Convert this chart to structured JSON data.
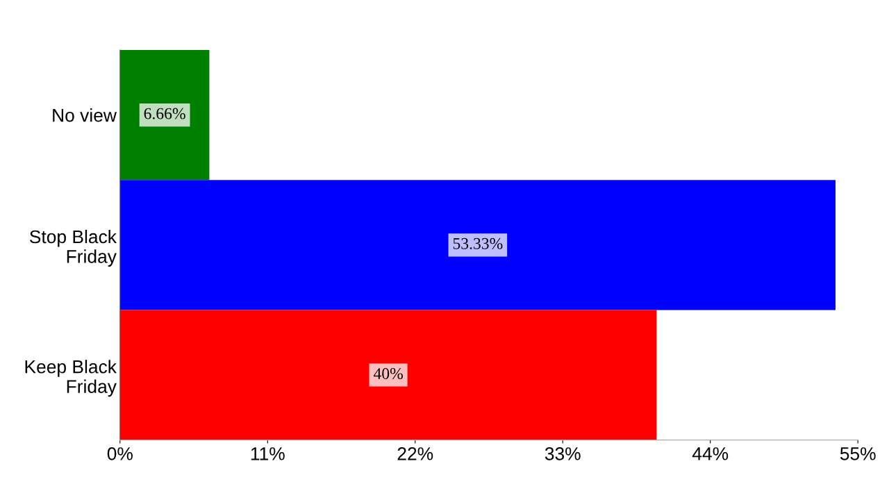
{
  "chart_data": {
    "type": "bar",
    "orientation": "horizontal",
    "categories": [
      "No view",
      "Stop Black\nFriday",
      "Keep Black\nFriday"
    ],
    "values": [
      6.66,
      53.33,
      40
    ],
    "colors": [
      "#008000",
      "#0000ff",
      "#ff0000"
    ],
    "value_labels": [
      "6.66%",
      "53.33%",
      "40%"
    ],
    "xlim": [
      0,
      55
    ],
    "xticks": [
      {
        "value": 0,
        "label": "0%"
      },
      {
        "value": 11,
        "label": "11%"
      },
      {
        "value": 22,
        "label": "22%"
      },
      {
        "value": 33,
        "label": "33%"
      },
      {
        "value": 44,
        "label": "44%"
      },
      {
        "value": 55,
        "label": "55%"
      }
    ],
    "grid": false
  }
}
